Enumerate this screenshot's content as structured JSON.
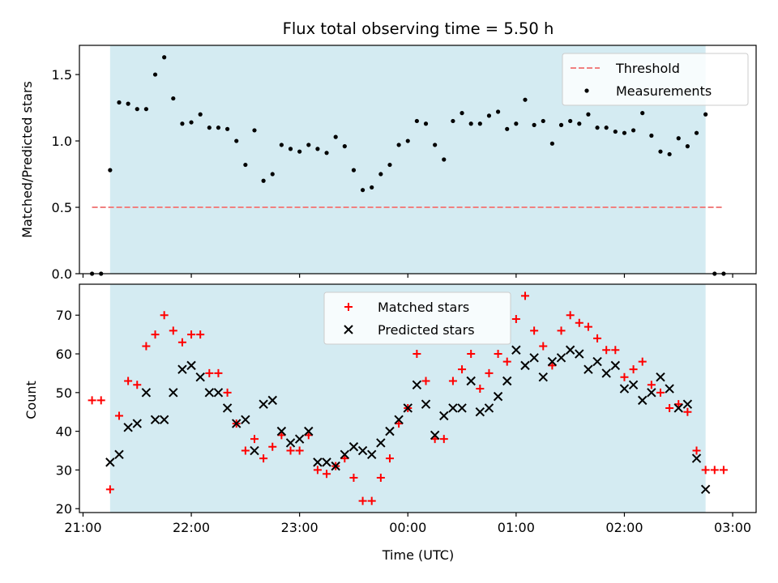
{
  "chart_data": [
    {
      "type": "scatter",
      "title": "Flux total observing time = 5.50 h",
      "xlabel": "",
      "ylabel": "Matched/Predicted stars",
      "xlim": [
        "2024-01-01T20:58",
        "2024-01-02T03:13"
      ],
      "ylim": [
        0,
        1.72
      ],
      "yticks": [
        0.0,
        0.5,
        1.0,
        1.5
      ],
      "ytick_labels": [
        "0.0",
        "0.5",
        "1.0",
        "1.5"
      ],
      "shaded_span": [
        "2024-01-01T21:15",
        "2024-01-02T02:45"
      ],
      "shade_color": "#add8e6",
      "legend": {
        "position": "top-right",
        "entries": [
          "Threshold",
          "Measurements"
        ]
      },
      "series": [
        {
          "name": "Threshold",
          "style": "dashed-line",
          "color": "#f08080",
          "x": [
            "2024-01-01T21:05",
            "2024-01-02T02:55"
          ],
          "y": [
            0.5,
            0.5
          ]
        },
        {
          "name": "Measurements",
          "style": "dot",
          "color": "#000000",
          "x": [
            "2024-01-01T21:05",
            "2024-01-01T21:10",
            "2024-01-01T21:15",
            "2024-01-01T21:20",
            "2024-01-01T21:25",
            "2024-01-01T21:30",
            "2024-01-01T21:35",
            "2024-01-01T21:40",
            "2024-01-01T21:45",
            "2024-01-01T21:50",
            "2024-01-01T21:55",
            "2024-01-01T22:00",
            "2024-01-01T22:05",
            "2024-01-01T22:10",
            "2024-01-01T22:15",
            "2024-01-01T22:20",
            "2024-01-01T22:25",
            "2024-01-01T22:30",
            "2024-01-01T22:35",
            "2024-01-01T22:40",
            "2024-01-01T22:45",
            "2024-01-01T22:50",
            "2024-01-01T22:55",
            "2024-01-01T23:00",
            "2024-01-01T23:05",
            "2024-01-01T23:10",
            "2024-01-01T23:15",
            "2024-01-01T23:20",
            "2024-01-01T23:25",
            "2024-01-01T23:30",
            "2024-01-01T23:35",
            "2024-01-01T23:40",
            "2024-01-01T23:45",
            "2024-01-01T23:50",
            "2024-01-01T23:55",
            "2024-01-02T00:00",
            "2024-01-02T00:05",
            "2024-01-02T00:10",
            "2024-01-02T00:15",
            "2024-01-02T00:20",
            "2024-01-02T00:25",
            "2024-01-02T00:30",
            "2024-01-02T00:35",
            "2024-01-02T00:40",
            "2024-01-02T00:45",
            "2024-01-02T00:50",
            "2024-01-02T00:55",
            "2024-01-02T01:00",
            "2024-01-02T01:05",
            "2024-01-02T01:10",
            "2024-01-02T01:15",
            "2024-01-02T01:20",
            "2024-01-02T01:25",
            "2024-01-02T01:30",
            "2024-01-02T01:35",
            "2024-01-02T01:40",
            "2024-01-02T01:45",
            "2024-01-02T01:50",
            "2024-01-02T01:55",
            "2024-01-02T02:00",
            "2024-01-02T02:05",
            "2024-01-02T02:10",
            "2024-01-02T02:15",
            "2024-01-02T02:20",
            "2024-01-02T02:25",
            "2024-01-02T02:30",
            "2024-01-02T02:35",
            "2024-01-02T02:40",
            "2024-01-02T02:45",
            "2024-01-02T02:50",
            "2024-01-02T02:55"
          ],
          "y": [
            0.0,
            0.0,
            0.78,
            1.29,
            1.28,
            1.24,
            1.24,
            1.5,
            1.63,
            1.32,
            1.13,
            1.14,
            1.2,
            1.1,
            1.1,
            1.09,
            1.0,
            0.82,
            1.08,
            0.7,
            0.75,
            0.97,
            0.94,
            0.92,
            0.97,
            0.94,
            0.91,
            1.03,
            0.96,
            0.78,
            0.63,
            0.65,
            0.75,
            0.82,
            0.97,
            1.0,
            1.15,
            1.13,
            0.97,
            0.86,
            1.15,
            1.21,
            1.13,
            1.13,
            1.19,
            1.22,
            1.09,
            1.13,
            1.31,
            1.12,
            1.15,
            0.98,
            1.12,
            1.15,
            1.13,
            1.2,
            1.1,
            1.1,
            1.07,
            1.06,
            1.08,
            1.21,
            1.04,
            0.92,
            0.9,
            1.02,
            0.96,
            1.06,
            1.2,
            0.0,
            0.0
          ]
        }
      ]
    },
    {
      "type": "scatter",
      "title": "",
      "xlabel": "Time (UTC)",
      "ylabel": "Count",
      "xlim": [
        "2024-01-01T20:58",
        "2024-01-02T03:13"
      ],
      "ylim": [
        19,
        78
      ],
      "yticks": [
        20,
        30,
        40,
        50,
        60,
        70
      ],
      "ytick_labels": [
        "20",
        "30",
        "40",
        "50",
        "60",
        "70"
      ],
      "xticks": [
        "2024-01-01T21:00",
        "2024-01-01T22:00",
        "2024-01-01T23:00",
        "2024-01-02T00:00",
        "2024-01-02T01:00",
        "2024-01-02T02:00",
        "2024-01-02T03:00"
      ],
      "xtick_labels": [
        "21:00",
        "22:00",
        "23:00",
        "00:00",
        "01:00",
        "02:00",
        "03:00"
      ],
      "shaded_span": [
        "2024-01-01T21:15",
        "2024-01-02T02:45"
      ],
      "shade_color": "#add8e6",
      "legend": {
        "position": "top-center",
        "entries": [
          "Matched stars",
          "Predicted stars"
        ]
      },
      "series": [
        {
          "name": "Matched stars",
          "style": "plus",
          "color": "#ff0000",
          "x": [
            "2024-01-01T21:05",
            "2024-01-01T21:10",
            "2024-01-01T21:15",
            "2024-01-01T21:20",
            "2024-01-01T21:25",
            "2024-01-01T21:30",
            "2024-01-01T21:35",
            "2024-01-01T21:40",
            "2024-01-01T21:45",
            "2024-01-01T21:50",
            "2024-01-01T21:55",
            "2024-01-01T22:00",
            "2024-01-01T22:05",
            "2024-01-01T22:10",
            "2024-01-01T22:15",
            "2024-01-01T22:20",
            "2024-01-01T22:25",
            "2024-01-01T22:30",
            "2024-01-01T22:35",
            "2024-01-01T22:40",
            "2024-01-01T22:45",
            "2024-01-01T22:50",
            "2024-01-01T22:55",
            "2024-01-01T23:00",
            "2024-01-01T23:05",
            "2024-01-01T23:10",
            "2024-01-01T23:15",
            "2024-01-01T23:20",
            "2024-01-01T23:25",
            "2024-01-01T23:30",
            "2024-01-01T23:35",
            "2024-01-01T23:40",
            "2024-01-01T23:45",
            "2024-01-01T23:50",
            "2024-01-01T23:55",
            "2024-01-02T00:00",
            "2024-01-02T00:05",
            "2024-01-02T00:10",
            "2024-01-02T00:15",
            "2024-01-02T00:20",
            "2024-01-02T00:25",
            "2024-01-02T00:30",
            "2024-01-02T00:35",
            "2024-01-02T00:40",
            "2024-01-02T00:45",
            "2024-01-02T00:50",
            "2024-01-02T00:55",
            "2024-01-02T01:00",
            "2024-01-02T01:05",
            "2024-01-02T01:10",
            "2024-01-02T01:15",
            "2024-01-02T01:20",
            "2024-01-02T01:25",
            "2024-01-02T01:30",
            "2024-01-02T01:35",
            "2024-01-02T01:40",
            "2024-01-02T01:45",
            "2024-01-02T01:50",
            "2024-01-02T01:55",
            "2024-01-02T02:00",
            "2024-01-02T02:05",
            "2024-01-02T02:10",
            "2024-01-02T02:15",
            "2024-01-02T02:20",
            "2024-01-02T02:25",
            "2024-01-02T02:30",
            "2024-01-02T02:35",
            "2024-01-02T02:40",
            "2024-01-02T02:45",
            "2024-01-02T02:50",
            "2024-01-02T02:55"
          ],
          "y": [
            48,
            48,
            25,
            44,
            53,
            52,
            62,
            65,
            70,
            66,
            63,
            65,
            65,
            55,
            55,
            50,
            42,
            35,
            38,
            33,
            36,
            39,
            35,
            35,
            39,
            30,
            29,
            31,
            33,
            28,
            22,
            22,
            28,
            33,
            42,
            46,
            60,
            53,
            38,
            38,
            53,
            56,
            60,
            51,
            55,
            60,
            58,
            69,
            75,
            66,
            62,
            57,
            66,
            70,
            68,
            67,
            64,
            61,
            61,
            54,
            56,
            58,
            52,
            50,
            46,
            47,
            45,
            35,
            30,
            30,
            30
          ]
        },
        {
          "name": "Predicted stars",
          "style": "x",
          "color": "#000000",
          "x": [
            "2024-01-01T21:15",
            "2024-01-01T21:20",
            "2024-01-01T21:25",
            "2024-01-01T21:30",
            "2024-01-01T21:35",
            "2024-01-01T21:40",
            "2024-01-01T21:45",
            "2024-01-01T21:50",
            "2024-01-01T21:55",
            "2024-01-01T22:00",
            "2024-01-01T22:05",
            "2024-01-01T22:10",
            "2024-01-01T22:15",
            "2024-01-01T22:20",
            "2024-01-01T22:25",
            "2024-01-01T22:30",
            "2024-01-01T22:35",
            "2024-01-01T22:40",
            "2024-01-01T22:45",
            "2024-01-01T22:50",
            "2024-01-01T22:55",
            "2024-01-01T23:00",
            "2024-01-01T23:05",
            "2024-01-01T23:10",
            "2024-01-01T23:15",
            "2024-01-01T23:20",
            "2024-01-01T23:25",
            "2024-01-01T23:30",
            "2024-01-01T23:35",
            "2024-01-01T23:40",
            "2024-01-01T23:45",
            "2024-01-01T23:50",
            "2024-01-01T23:55",
            "2024-01-02T00:00",
            "2024-01-02T00:05",
            "2024-01-02T00:10",
            "2024-01-02T00:15",
            "2024-01-02T00:20",
            "2024-01-02T00:25",
            "2024-01-02T00:30",
            "2024-01-02T00:35",
            "2024-01-02T00:40",
            "2024-01-02T00:45",
            "2024-01-02T00:50",
            "2024-01-02T00:55",
            "2024-01-02T01:00",
            "2024-01-02T01:05",
            "2024-01-02T01:10",
            "2024-01-02T01:15",
            "2024-01-02T01:20",
            "2024-01-02T01:25",
            "2024-01-02T01:30",
            "2024-01-02T01:35",
            "2024-01-02T01:40",
            "2024-01-02T01:45",
            "2024-01-02T01:50",
            "2024-01-02T01:55",
            "2024-01-02T02:00",
            "2024-01-02T02:05",
            "2024-01-02T02:10",
            "2024-01-02T02:15",
            "2024-01-02T02:20",
            "2024-01-02T02:25",
            "2024-01-02T02:30",
            "2024-01-02T02:35",
            "2024-01-02T02:40",
            "2024-01-02T02:45"
          ],
          "y": [
            32,
            34,
            41,
            42,
            50,
            43,
            43,
            50,
            56,
            57,
            54,
            50,
            50,
            46,
            42,
            43,
            35,
            47,
            48,
            40,
            37,
            38,
            40,
            32,
            32,
            31,
            34,
            36,
            35,
            34,
            37,
            40,
            43,
            46,
            52,
            47,
            39,
            44,
            46,
            46,
            53,
            45,
            46,
            49,
            53,
            61,
            57,
            59,
            54,
            58,
            59,
            61,
            60,
            56,
            58,
            55,
            57,
            51,
            52,
            48,
            50,
            54,
            51,
            46,
            47,
            33,
            25
          ]
        }
      ]
    }
  ]
}
